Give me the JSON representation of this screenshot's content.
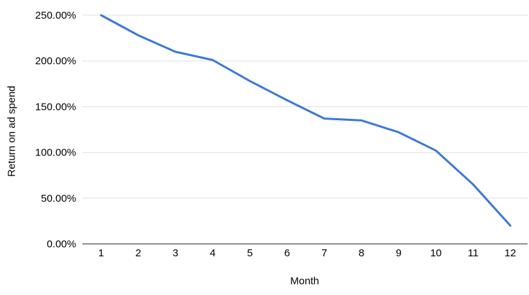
{
  "chart_data": {
    "type": "line",
    "title": "",
    "xlabel": "Month",
    "ylabel": "Return on ad spend",
    "x": [
      1,
      2,
      3,
      4,
      5,
      6,
      7,
      8,
      9,
      10,
      11,
      12
    ],
    "x_tick_labels": [
      "1",
      "2",
      "3",
      "4",
      "5",
      "6",
      "7",
      "8",
      "9",
      "10",
      "11",
      "12"
    ],
    "series": [
      {
        "name": "Return on ad spend",
        "values": [
          250,
          228,
          210,
          201,
          178,
          157,
          137,
          135,
          122,
          102,
          65,
          20
        ]
      }
    ],
    "ylim": [
      0,
      250
    ],
    "y_ticks": [
      0,
      50,
      100,
      150,
      200,
      250
    ],
    "y_tick_labels": [
      "0.00%",
      "50.00%",
      "100.00%",
      "150.00%",
      "200.00%",
      "250.00%"
    ],
    "grid": true,
    "legend": "none",
    "line_color": "#3c78d8",
    "gridline_color": "#e0e0e0",
    "axis_line_color": "#8f8f8f",
    "text_color": "#000000",
    "background": "#ffffff"
  }
}
